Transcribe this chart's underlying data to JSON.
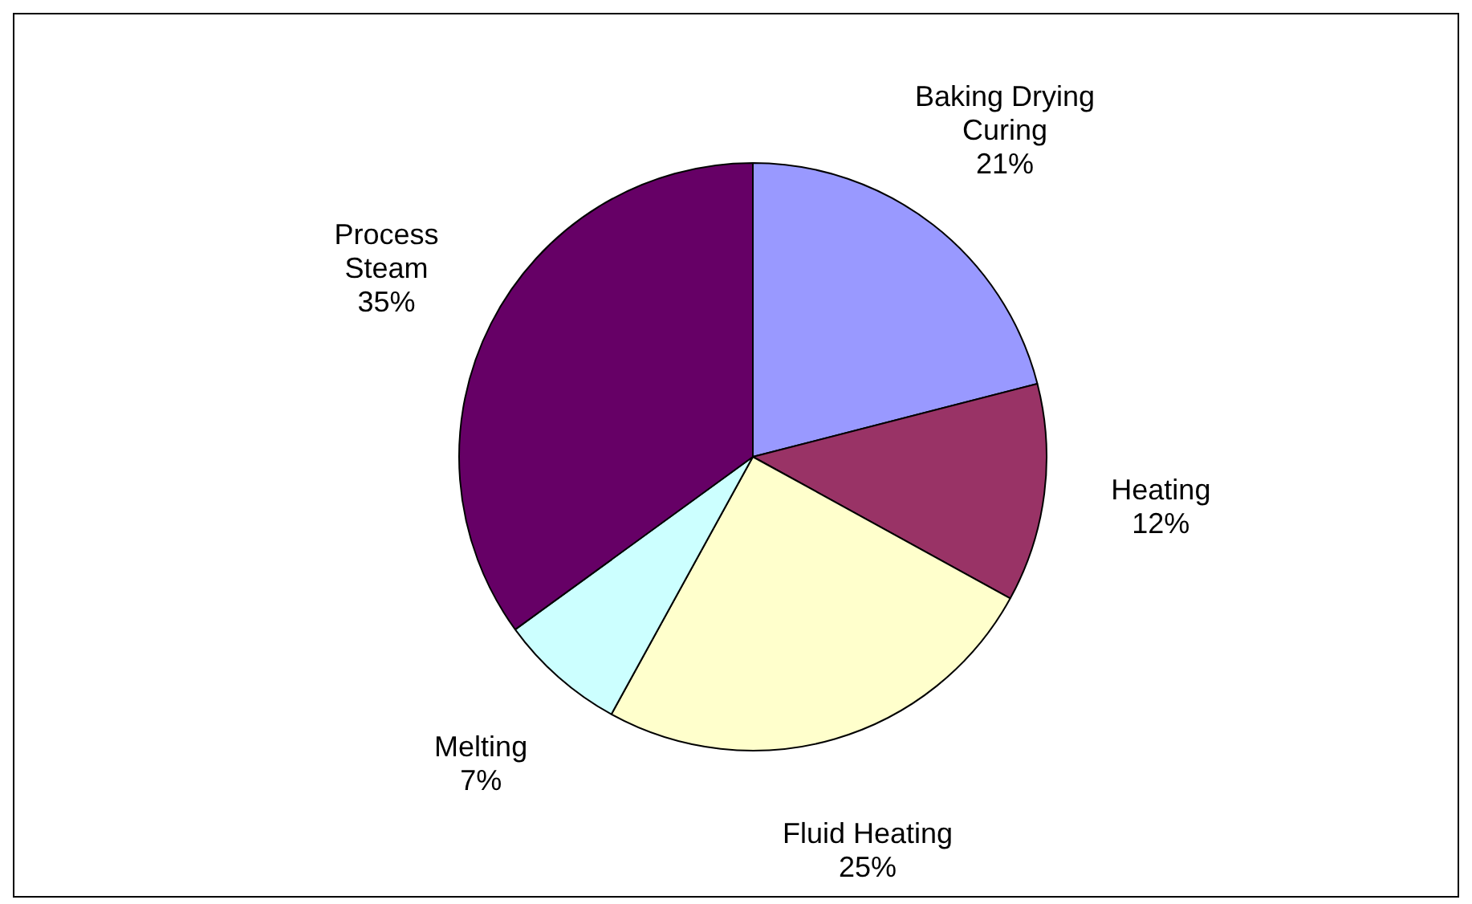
{
  "chart_data": {
    "type": "pie",
    "categories": [
      "Baking Drying Curing",
      "Heating",
      "Fluid Heating",
      "Melting",
      "Process Steam"
    ],
    "values": [
      21,
      12,
      25,
      7,
      35
    ],
    "value_labels": [
      "21%",
      "12%",
      "25%",
      "7%",
      "35%"
    ],
    "colors": [
      "#9999ff",
      "#993366",
      "#ffffcc",
      "#ccffff",
      "#660066"
    ],
    "legend": false
  }
}
